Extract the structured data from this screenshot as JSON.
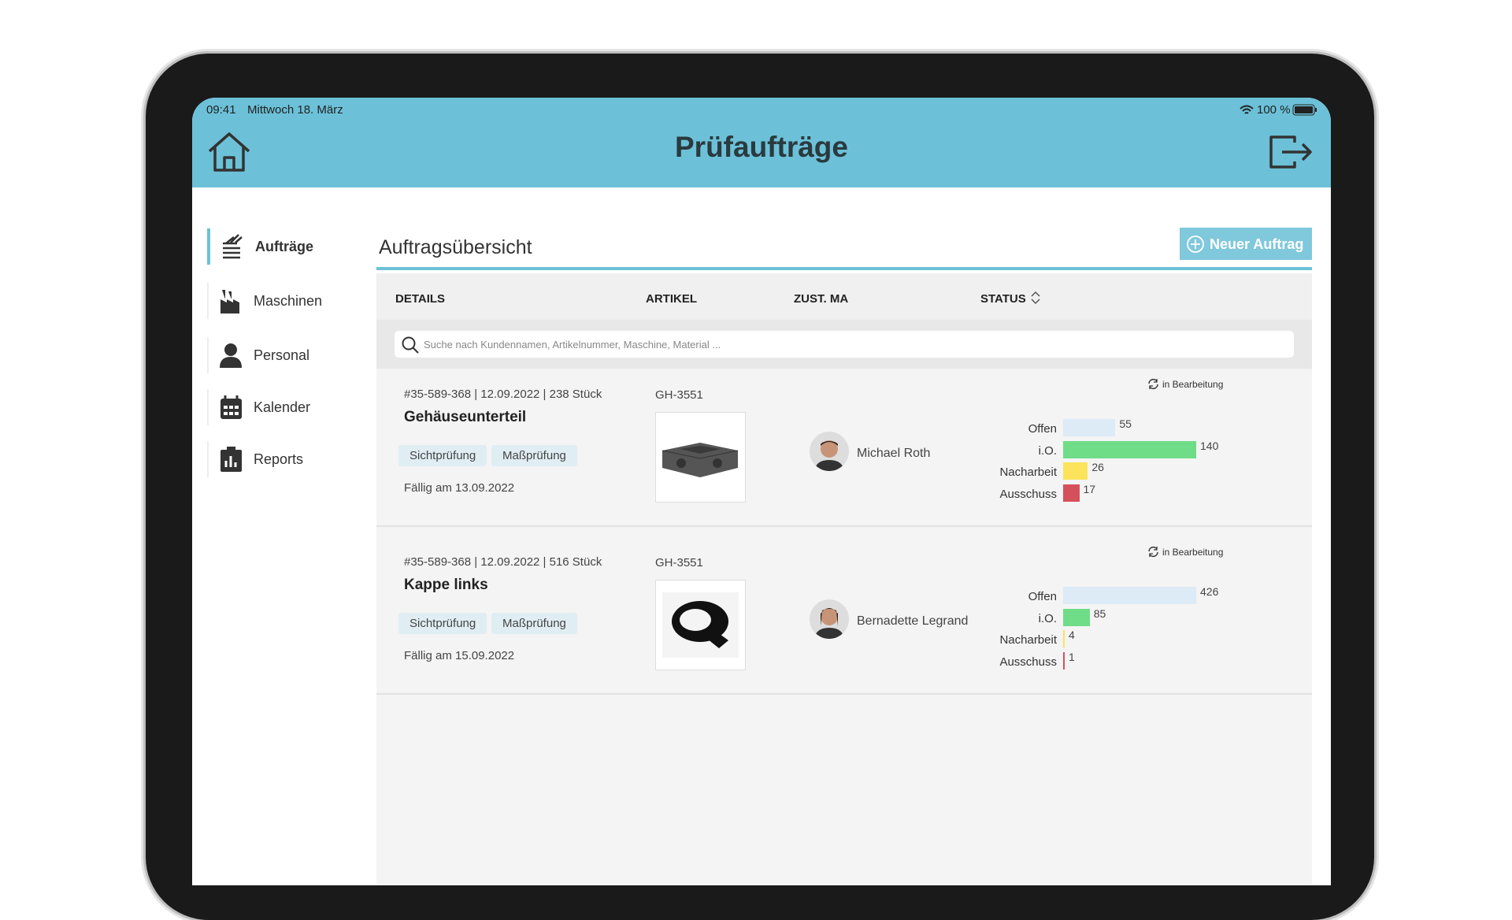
{
  "status_bar": {
    "time": "09:41",
    "date": "Mittwoch 18. März",
    "battery": "100 %"
  },
  "header": {
    "title": "Prüfaufträge"
  },
  "sidebar": {
    "items": [
      "Aufträge",
      "Maschinen",
      "Personal",
      "Kalender",
      "Reports"
    ]
  },
  "content": {
    "title": "Auftragsübersicht",
    "button": "Neuer Auftrag",
    "columns": [
      "DETAILS",
      "ARTIKEL",
      "ZUST. MA",
      "STATUS"
    ],
    "search_placeholder": "Suche nach Kundennamen, Artikelnummer, Maschine, Material ...",
    "stat_colors": [
      "#dcebf6",
      "#6fdc87",
      "#fbe35c",
      "#d5505a"
    ],
    "orders": [
      {
        "meta": "#35-589-368 | 12.09.2022 | 238 Stück",
        "title": "Gehäuseunterteil",
        "tags": [
          "Sichtprüfung",
          "Maßprüfung"
        ],
        "due": "Fällig am 13.09.2022",
        "article": "GH-3551",
        "assignee": "Michael Roth",
        "status": "in Bearbeitung",
        "stats": {
          "labels": [
            "Offen",
            "i.O.",
            "Nacharbeit",
            "Ausschuss"
          ],
          "values": [
            55,
            140,
            26,
            17
          ]
        }
      },
      {
        "meta": "#35-589-368 | 12.09.2022 | 516 Stück",
        "title": "Kappe links",
        "tags": [
          "Sichtprüfung",
          "Maßprüfung"
        ],
        "due": "Fällig am 15.09.2022",
        "article": "GH-3551",
        "assignee": "Bernadette Legrand",
        "status": "in Bearbeitung",
        "stats": {
          "labels": [
            "Offen",
            "i.O.",
            "Nacharbeit",
            "Ausschuss"
          ],
          "values": [
            426,
            85,
            4,
            1
          ]
        }
      }
    ]
  }
}
